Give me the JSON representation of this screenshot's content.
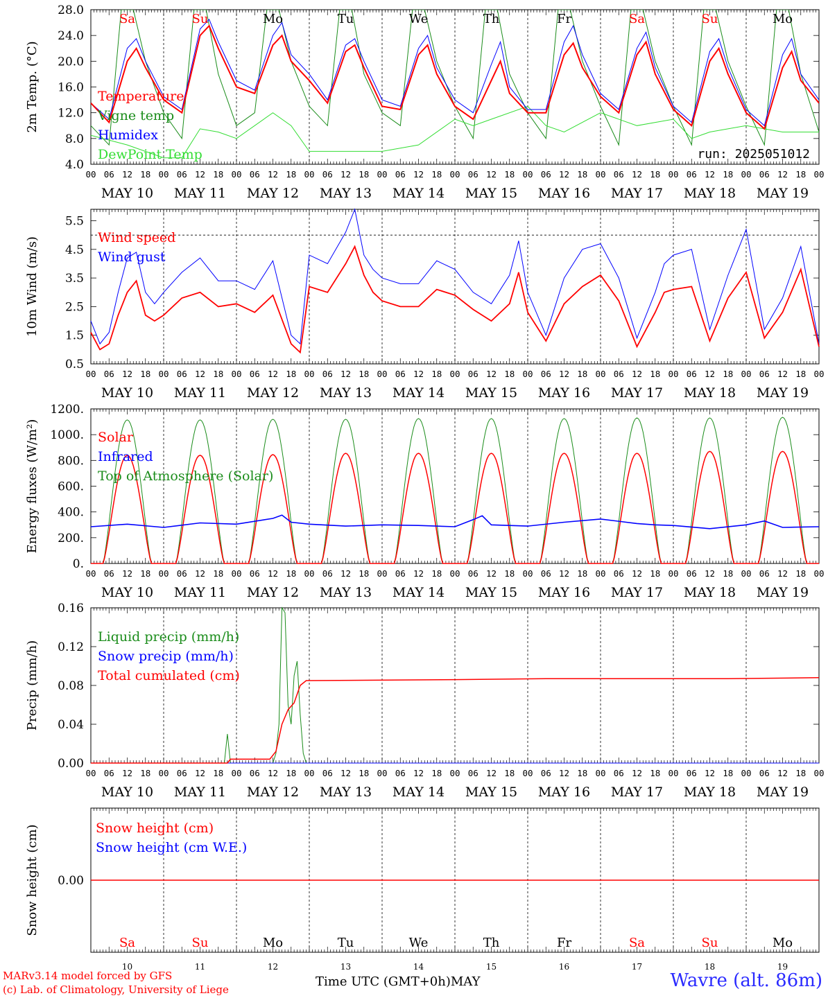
{
  "footer": {
    "model_line": "MARv3.14 model forced by GFS",
    "credit_line": "(c) Lab. of Climatology, University of Liege",
    "time_label": "Time UTC (GMT+0h)",
    "month_label": "MAY",
    "station": "Wavre (alt. 86m)"
  },
  "days": {
    "weekday_labels": [
      "Sa",
      "Su",
      "Mo",
      "Tu",
      "We",
      "Th",
      "Fr",
      "Sa",
      "Su",
      "Mo"
    ],
    "weekend_flags": [
      true,
      true,
      false,
      false,
      false,
      false,
      false,
      true,
      true,
      false
    ],
    "date_labels": [
      "MAY 10",
      "MAY 11",
      "MAY 12",
      "MAY 13",
      "MAY 14",
      "MAY 15",
      "MAY 16",
      "MAY 17",
      "MAY 18",
      "MAY 19"
    ],
    "day_numbers": [
      "10",
      "11",
      "12",
      "13",
      "14",
      "15",
      "16",
      "17",
      "18",
      "19"
    ],
    "hour_labels": [
      "00",
      "06",
      "12",
      "18"
    ],
    "final_hour_label": "00"
  },
  "colors": {
    "weekend": "#ff0000",
    "weekday": "#000000",
    "red": "#ff0000",
    "dark_green": "#1a8c1a",
    "blue": "#0000ff",
    "light_green": "#33dd33"
  },
  "chart_data": [
    {
      "type": "line",
      "ylabel": "2m Temp. (°C)",
      "ylim": [
        4,
        28
      ],
      "y_ticks": [
        "4.0",
        "8.0",
        "12.0",
        "16.0",
        "20.0",
        "24.0",
        "28.0"
      ],
      "run_label": "run: 2025051012",
      "x_unit": "hours since MAY 10 00 UTC",
      "series": [
        {
          "name": "Temperature",
          "color": "#ff0000",
          "x": [
            0,
            6,
            12,
            15,
            18,
            24,
            30,
            36,
            39,
            42,
            48,
            54,
            60,
            63,
            66,
            72,
            78,
            84,
            87,
            90,
            96,
            102,
            108,
            111,
            114,
            120,
            126,
            132,
            135,
            138,
            144,
            150,
            156,
            159,
            162,
            168,
            174,
            180,
            183,
            186,
            192,
            198,
            204,
            207,
            210,
            216,
            222,
            228,
            231,
            234,
            240
          ],
          "y": [
            13.5,
            10.5,
            20,
            22,
            19,
            14,
            12,
            24,
            25.5,
            22,
            16,
            15,
            22.5,
            24,
            20,
            17,
            13.5,
            21.5,
            22.5,
            19,
            13,
            12.5,
            21,
            22.5,
            18,
            13,
            11,
            17,
            20,
            15,
            12,
            12,
            21,
            22.8,
            19,
            14.5,
            12,
            21,
            23,
            18,
            12.5,
            10,
            20,
            22,
            18,
            12,
            9.5,
            19,
            21.5,
            17,
            13.5
          ]
        },
        {
          "name": "Vigne temp",
          "color": "#1a8c1a",
          "x": [
            0,
            6,
            10,
            14,
            18,
            24,
            30,
            34,
            38,
            42,
            48,
            54,
            58,
            62,
            66,
            72,
            78,
            82,
            86,
            90,
            96,
            102,
            106,
            110,
            114,
            120,
            126,
            130,
            134,
            138,
            144,
            150,
            154,
            158,
            162,
            168,
            174,
            178,
            182,
            186,
            192,
            198,
            202,
            206,
            210,
            216,
            222,
            226,
            230,
            234,
            240
          ],
          "y": [
            10,
            7,
            28,
            28,
            20,
            12,
            8,
            28,
            28,
            18,
            10,
            12,
            28,
            28,
            20,
            13,
            10,
            28,
            28,
            18,
            12,
            10,
            28,
            28,
            20,
            13,
            8,
            28,
            28,
            18,
            12,
            8,
            28,
            28,
            20,
            13,
            7,
            28,
            28,
            20,
            13,
            7,
            28,
            28,
            20,
            13,
            7,
            28,
            28,
            18,
            9
          ]
        },
        {
          "name": "Humidex",
          "color": "#0000ff",
          "x": [
            0,
            6,
            12,
            15,
            18,
            24,
            30,
            36,
            39,
            42,
            48,
            54,
            60,
            63,
            66,
            72,
            78,
            84,
            87,
            90,
            96,
            102,
            108,
            111,
            114,
            120,
            126,
            132,
            135,
            138,
            144,
            150,
            156,
            159,
            162,
            168,
            174,
            180,
            183,
            186,
            192,
            198,
            204,
            207,
            210,
            216,
            222,
            228,
            231,
            234,
            240
          ],
          "y": [
            13.5,
            11,
            22,
            23.5,
            20,
            14.5,
            12.5,
            25,
            26.5,
            23,
            17,
            15.5,
            24,
            26,
            21,
            18,
            14,
            22.5,
            23.5,
            20,
            14,
            13,
            22,
            24,
            19,
            14,
            12,
            19.5,
            23,
            16,
            12.5,
            12.5,
            23,
            25.5,
            21,
            15,
            12.5,
            22,
            24.5,
            19,
            13,
            10.5,
            21.5,
            23.5,
            19,
            12.5,
            10,
            21,
            23.5,
            18,
            14
          ]
        },
        {
          "name": "DewPoint Temp",
          "color": "#33dd33",
          "x": [
            0,
            12,
            24,
            30,
            36,
            42,
            48,
            60,
            66,
            72,
            84,
            96,
            108,
            120,
            126,
            132,
            144,
            150,
            156,
            168,
            180,
            192,
            198,
            204,
            216,
            228,
            240
          ],
          "y": [
            8.5,
            7,
            5,
            5,
            9.5,
            9,
            8,
            12,
            10,
            6,
            6,
            6,
            7,
            11,
            10,
            11,
            13,
            10,
            9,
            12,
            10,
            11,
            8,
            9,
            10,
            9,
            9
          ]
        }
      ]
    },
    {
      "type": "line",
      "ylabel": "10m Wind (m/s)",
      "ylim": [
        0.5,
        5.9
      ],
      "y_ticks": [
        "0.5",
        "1.5",
        "2.5",
        "3.5",
        "4.5",
        "5.5"
      ],
      "reference_line": 5.0,
      "x_unit": "hours since MAY 10 00 UTC",
      "series": [
        {
          "name": "Wind speed",
          "color": "#ff0000",
          "x": [
            0,
            3,
            6,
            9,
            12,
            15,
            18,
            21,
            24,
            30,
            36,
            42,
            48,
            54,
            60,
            66,
            69,
            72,
            78,
            84,
            87,
            90,
            93,
            96,
            102,
            108,
            114,
            120,
            126,
            132,
            138,
            141,
            144,
            150,
            156,
            162,
            168,
            174,
            180,
            186,
            189,
            192,
            198,
            204,
            210,
            216,
            222,
            228,
            234,
            240
          ],
          "y": [
            1.6,
            1.0,
            1.2,
            2.2,
            3.0,
            3.4,
            2.2,
            2.0,
            2.2,
            2.8,
            3.0,
            2.5,
            2.6,
            2.3,
            2.9,
            1.2,
            0.9,
            3.2,
            3.0,
            4.0,
            4.6,
            3.6,
            3.0,
            2.7,
            2.5,
            2.5,
            3.1,
            2.9,
            2.4,
            2.0,
            2.6,
            3.7,
            2.3,
            1.3,
            2.6,
            3.2,
            3.6,
            2.7,
            1.1,
            2.3,
            3.0,
            3.1,
            3.2,
            1.3,
            2.8,
            3.7,
            1.4,
            2.3,
            3.8,
            1.1
          ]
        },
        {
          "name": "Wind gust",
          "color": "#0000ff",
          "x": [
            0,
            3,
            6,
            9,
            12,
            15,
            18,
            21,
            24,
            30,
            36,
            42,
            48,
            54,
            60,
            66,
            69,
            72,
            78,
            84,
            87,
            90,
            93,
            96,
            102,
            108,
            114,
            120,
            126,
            132,
            138,
            141,
            144,
            150,
            156,
            162,
            168,
            174,
            180,
            186,
            189,
            192,
            198,
            204,
            210,
            216,
            222,
            228,
            234,
            240
          ],
          "y": [
            2.0,
            1.2,
            1.6,
            3.0,
            4.2,
            4.4,
            3.0,
            2.6,
            3.0,
            3.7,
            4.2,
            3.4,
            3.4,
            3.1,
            4.1,
            1.5,
            1.2,
            4.3,
            4.0,
            5.1,
            5.9,
            4.3,
            3.8,
            3.5,
            3.3,
            3.3,
            4.1,
            3.8,
            3.0,
            2.6,
            3.6,
            4.8,
            3.0,
            1.5,
            3.5,
            4.5,
            4.7,
            3.5,
            1.4,
            3.0,
            4.0,
            4.3,
            4.5,
            1.7,
            3.6,
            5.2,
            1.7,
            2.8,
            4.6,
            1.2
          ]
        }
      ]
    },
    {
      "type": "line",
      "ylabel": "Energy fluxes (W/m²)",
      "ylim": [
        0,
        1200
      ],
      "y_ticks": [
        "0.",
        "200.",
        "400.",
        "600.",
        "800.",
        "1000.",
        "1200."
      ],
      "x_unit": "hours since MAY 10 00 UTC",
      "daily_peaks_solar": [
        840,
        840,
        845,
        855,
        855,
        855,
        855,
        855,
        870,
        870
      ],
      "daily_peaks_toa": [
        1115,
        1115,
        1120,
        1120,
        1125,
        1125,
        1125,
        1130,
        1130,
        1135
      ],
      "sunrise_hour": 4,
      "sunset_hour": 20,
      "series": [
        {
          "name": "Solar",
          "color": "#ff0000"
        },
        {
          "name": "Infrared",
          "color": "#0000ff",
          "x": [
            0,
            12,
            24,
            36,
            48,
            60,
            63,
            66,
            72,
            84,
            96,
            108,
            120,
            126,
            129,
            132,
            144,
            156,
            168,
            180,
            186,
            192,
            204,
            216,
            222,
            228,
            240
          ],
          "y": [
            285,
            305,
            280,
            315,
            305,
            350,
            375,
            320,
            305,
            290,
            300,
            295,
            285,
            340,
            370,
            300,
            290,
            320,
            345,
            310,
            300,
            295,
            270,
            300,
            330,
            280,
            285
          ]
        },
        {
          "name": "Top of Atmosphere (Solar)",
          "color": "#1a8c1a"
        }
      ]
    },
    {
      "type": "line",
      "ylabel": "Precip (mm/h)",
      "ylim": [
        0,
        0.16
      ],
      "y_ticks": [
        "0.00",
        "0.04",
        "0.08",
        "0.12",
        "0.16"
      ],
      "x_unit": "hours since MAY 10 00 UTC",
      "series": [
        {
          "name": "Liquid precip (mm/h)",
          "color": "#1a8c1a",
          "x": [
            0,
            44,
            45,
            46,
            47,
            60,
            61,
            62,
            63,
            64,
            65,
            66,
            67,
            68,
            69,
            70,
            71,
            72,
            240
          ],
          "y": [
            0,
            0,
            0.03,
            0,
            0,
            0,
            0.01,
            0.04,
            0.16,
            0.155,
            0.06,
            0.04,
            0.09,
            0.105,
            0.05,
            0.01,
            0,
            0,
            0
          ]
        },
        {
          "name": "Snow precip (mm/h)",
          "color": "#0000ff",
          "x": [
            0,
            240
          ],
          "y": [
            0,
            0
          ]
        },
        {
          "name": "Total cumulated (cm)",
          "color": "#ff0000",
          "x": [
            0,
            45,
            46,
            59,
            61,
            63,
            65,
            67,
            69,
            71,
            72,
            120,
            150,
            210,
            240
          ],
          "y": [
            0,
            0,
            0.004,
            0.004,
            0.012,
            0.04,
            0.055,
            0.062,
            0.08,
            0.085,
            0.085,
            0.086,
            0.087,
            0.087,
            0.088
          ]
        }
      ]
    },
    {
      "type": "line",
      "ylabel": "Snow height (cm)",
      "y_ticks": [
        "0.00"
      ],
      "x_unit": "hours since MAY 10 00 UTC",
      "series": [
        {
          "name": "Snow height (cm)",
          "color": "#ff0000",
          "x": [
            0,
            240
          ],
          "y": [
            0,
            0
          ]
        },
        {
          "name": "Snow height (cm W.E.)",
          "color": "#0000ff",
          "x": [
            0,
            240
          ],
          "y": [
            0,
            0
          ]
        }
      ]
    }
  ]
}
